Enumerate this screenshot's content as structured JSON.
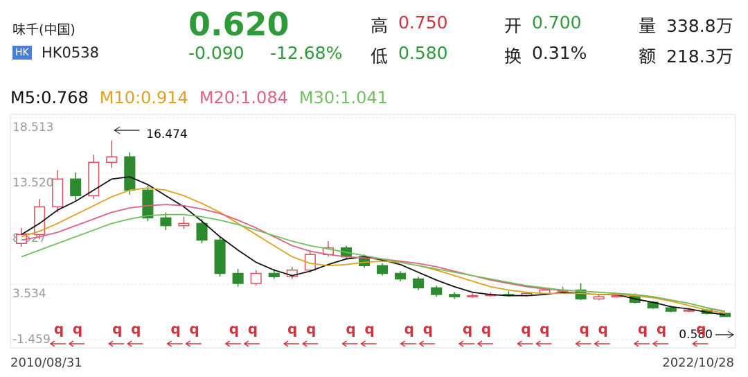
{
  "header": {
    "name": "味千(中国)",
    "badge": "HK",
    "code": "HK0538",
    "price": "0.620",
    "change": "-0.090",
    "change_pct": "-12.68%",
    "stats": [
      {
        "label": "高",
        "value": "0.750",
        "color": "#d0343c"
      },
      {
        "label": "低",
        "value": "0.580",
        "color": "#2f9a3a"
      },
      {
        "label": "开",
        "value": "0.700",
        "color": "#2f9a3a"
      },
      {
        "label": "换",
        "value": "0.31%",
        "color": "#222222"
      },
      {
        "label": "量",
        "value": "338.8万",
        "color": "#222222"
      },
      {
        "label": "额",
        "value": "218.3万",
        "color": "#222222"
      }
    ]
  },
  "chart_data": {
    "type": "candlestick",
    "categories": [
      "2010/08/31",
      null,
      null,
      null,
      null,
      null,
      null,
      null,
      null,
      null,
      null,
      null,
      null,
      null,
      null,
      null,
      null,
      null,
      null,
      null,
      null,
      null,
      null,
      null,
      null,
      null,
      null,
      null,
      null,
      null,
      null,
      null,
      null,
      null,
      null,
      null,
      null,
      null,
      null,
      "2022/10/28"
    ],
    "open": [
      7.2,
      8.0,
      10.5,
      13.0,
      11.5,
      14.5,
      15.0,
      12.0,
      9.5,
      8.8,
      9.0,
      7.5,
      4.5,
      3.6,
      4.5,
      4.2,
      4.8,
      6.2,
      6.8,
      6.0,
      5.2,
      4.5,
      4.0,
      3.2,
      2.6,
      2.4,
      2.5,
      2.6,
      2.5,
      2.7,
      3.0,
      3.0,
      2.2,
      2.4,
      2.5,
      1.9,
      1.4,
      1.1,
      1.2,
      0.9
    ],
    "high": [
      8.6,
      11.2,
      13.8,
      13.6,
      15.2,
      16.474,
      15.4,
      12.4,
      10.0,
      9.6,
      9.4,
      7.8,
      4.9,
      4.8,
      4.9,
      5.1,
      6.6,
      7.4,
      7.0,
      6.2,
      5.4,
      4.7,
      4.2,
      3.4,
      2.8,
      2.7,
      2.8,
      2.9,
      2.8,
      3.1,
      3.3,
      3.6,
      2.6,
      2.7,
      2.7,
      2.0,
      1.6,
      1.4,
      1.3,
      0.95
    ],
    "low": [
      6.9,
      7.6,
      10.0,
      11.0,
      11.2,
      14.0,
      11.6,
      9.2,
      8.4,
      8.5,
      7.2,
      4.2,
      3.3,
      3.4,
      4.0,
      4.0,
      4.6,
      6.0,
      5.8,
      5.0,
      4.3,
      3.8,
      3.0,
      2.4,
      2.2,
      2.3,
      2.4,
      2.4,
      2.4,
      2.6,
      2.8,
      2.1,
      2.1,
      2.3,
      1.8,
      1.3,
      1.0,
      1.0,
      0.8,
      0.58
    ],
    "close": [
      8.0,
      10.5,
      13.0,
      11.5,
      14.5,
      15.0,
      12.0,
      9.5,
      8.8,
      9.0,
      7.5,
      4.5,
      3.6,
      4.5,
      4.2,
      4.8,
      6.2,
      6.8,
      6.0,
      5.2,
      4.5,
      4.0,
      3.2,
      2.6,
      2.4,
      2.5,
      2.6,
      2.5,
      2.7,
      3.0,
      3.0,
      2.2,
      2.4,
      2.5,
      1.9,
      1.4,
      1.1,
      1.2,
      0.9,
      0.62
    ],
    "up_color": "#e0505a",
    "down_color": "#2e8a2e",
    "series": [
      {
        "name": "M5:0.768",
        "color": "#111111",
        "values": [
          8.0,
          9.0,
          10.2,
          11.0,
          12.0,
          13.0,
          13.2,
          12.5,
          11.5,
          10.5,
          9.2,
          7.8,
          6.6,
          5.5,
          4.8,
          4.3,
          4.7,
          5.3,
          5.8,
          6.0,
          5.7,
          5.3,
          4.6,
          3.9,
          3.3,
          2.8,
          2.6,
          2.5,
          2.5,
          2.6,
          2.8,
          2.7,
          2.6,
          2.6,
          2.2,
          1.9,
          1.5,
          1.3,
          1.0,
          0.768
        ]
      },
      {
        "name": "M10:0.914",
        "color": "#e0a020",
        "values": [
          7.8,
          8.3,
          9.0,
          9.8,
          10.6,
          11.4,
          12.0,
          12.2,
          12.0,
          11.5,
          10.8,
          10.0,
          9.0,
          8.0,
          7.0,
          6.0,
          5.4,
          5.2,
          5.3,
          5.5,
          5.6,
          5.5,
          5.2,
          4.8,
          4.3,
          3.8,
          3.3,
          3.0,
          2.8,
          2.7,
          2.7,
          2.7,
          2.6,
          2.6,
          2.5,
          2.3,
          2.0,
          1.6,
          1.2,
          0.914
        ]
      },
      {
        "name": "M20:1.084",
        "color": "#e06080",
        "values": [
          7.5,
          7.8,
          8.2,
          8.8,
          9.4,
          10.0,
          10.4,
          10.6,
          10.7,
          10.6,
          10.3,
          9.9,
          9.3,
          8.6,
          7.8,
          7.0,
          6.5,
          6.2,
          6.0,
          5.9,
          5.8,
          5.6,
          5.4,
          5.1,
          4.7,
          4.3,
          3.9,
          3.6,
          3.3,
          3.1,
          3.0,
          2.9,
          2.8,
          2.7,
          2.6,
          2.4,
          2.1,
          1.8,
          1.4,
          1.084
        ]
      },
      {
        "name": "M30:1.041",
        "color": "#70c060",
        "values": [
          6.0,
          6.6,
          7.2,
          7.8,
          8.4,
          9.0,
          9.4,
          9.7,
          9.8,
          9.8,
          9.6,
          9.3,
          8.9,
          8.4,
          7.9,
          7.4,
          7.0,
          6.7,
          6.4,
          6.1,
          5.8,
          5.5,
          5.2,
          4.9,
          4.6,
          4.3,
          4.0,
          3.7,
          3.4,
          3.2,
          3.0,
          2.9,
          2.8,
          2.7,
          2.6,
          2.4,
          2.1,
          1.8,
          1.4,
          1.041
        ]
      }
    ],
    "ylim": [
      -1.459,
      18.513
    ],
    "yticks": [
      18.513,
      13.52,
      {
        "value": 8.527,
        "label": "8.527"
      },
      3.534,
      -1.459
    ],
    "ytick_labels": [
      "18.513",
      "13.520",
      "8.527",
      "3.534",
      "-1.459"
    ],
    "annotations": {
      "max": "16.474",
      "min": "0.580"
    },
    "event_marker": "q",
    "grid": true
  }
}
